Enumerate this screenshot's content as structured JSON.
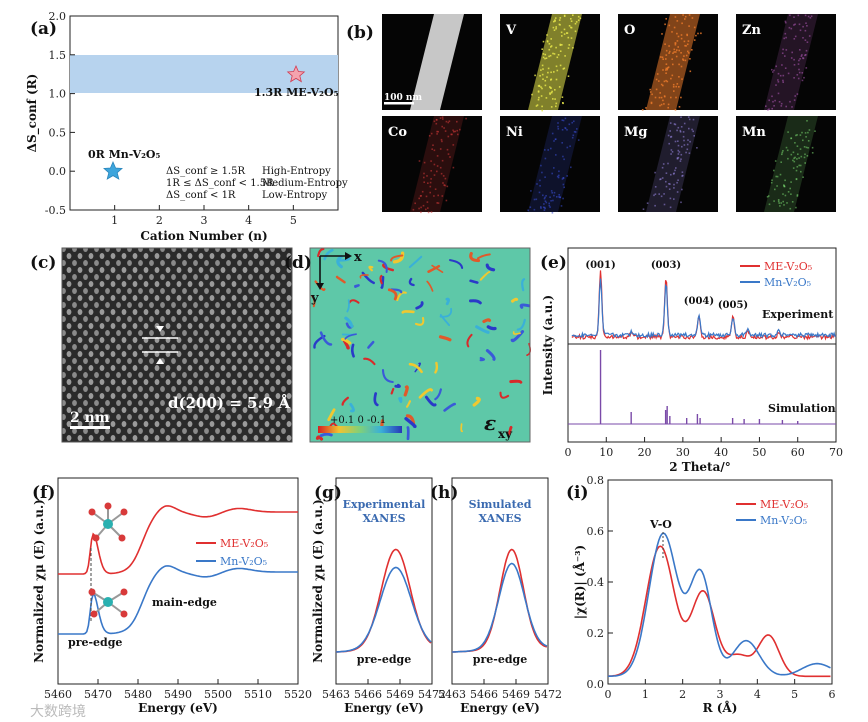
{
  "panels": {
    "a": {
      "label": "(a)",
      "chart_data": {
        "type": "scatter",
        "xlabel": "Cation Number (n)",
        "ylabel": "ΔS_conf (R)",
        "xlim": [
          0,
          6
        ],
        "ylim": [
          -0.5,
          2.0
        ],
        "xticks": [
          "1",
          "2",
          "3",
          "4",
          "5"
        ],
        "yticks": [
          "-0.5",
          "0.0",
          "0.5",
          "1.0",
          "1.5",
          "2.0"
        ],
        "band": [
          1.0,
          1.5
        ],
        "points": [
          {
            "name": "0R Mn-V₂O₅",
            "x": 1,
            "y": 0.0,
            "color": "#3da5dc"
          },
          {
            "name": "1.3R ME-V₂O₅",
            "x": 5,
            "y": 1.25,
            "color": "#f4a3ae"
          }
        ],
        "criteria": [
          {
            "cond": "ΔS_conf ≥ 1.5R",
            "cls": "High-Entropy"
          },
          {
            "cond": "1R ≤ ΔS_conf < 1.5R",
            "cls": "Medium-Entropy"
          },
          {
            "cond": "ΔS_conf < 1R",
            "cls": "Low-Entropy"
          }
        ]
      }
    },
    "b": {
      "label": "(b)",
      "scale_bar": "100 nm",
      "tiles": [
        {
          "el": "",
          "color": "#dcdcdc"
        },
        {
          "el": "V",
          "color": "#e6e64a"
        },
        {
          "el": "O",
          "color": "#e8782a"
        },
        {
          "el": "Zn",
          "color": "#b05ab8"
        },
        {
          "el": "Co",
          "color": "#d83a3a"
        },
        {
          "el": "Ni",
          "color": "#3a4ed8"
        },
        {
          "el": "Mg",
          "color": "#9a88e8"
        },
        {
          "el": "Mn",
          "color": "#7ad870"
        }
      ]
    },
    "c": {
      "label": "(c)",
      "scale_bar": "2 nm",
      "spacing": "d(200) = 5.9 Å"
    },
    "d": {
      "label": "(d)",
      "axis_x": "x",
      "axis_y": "y",
      "colorbar": "+0.1  0  -0.1",
      "strain": "ε",
      "strain_sub": "xy"
    },
    "e": {
      "label": "(e)",
      "chart_data": {
        "type": "line",
        "xlabel": "2 Theta/°",
        "ylabel": "Intensity (a.u.)",
        "xlim": [
          0,
          70
        ],
        "xticks": [
          "0",
          "10",
          "20",
          "30",
          "40",
          "50",
          "60",
          "70"
        ],
        "peaks": [
          {
            "label": "(001)",
            "x": 8.5
          },
          {
            "label": "(003)",
            "x": 25.6
          },
          {
            "label": "(004)",
            "x": 34.2
          },
          {
            "label": "(005)",
            "x": 43.1
          }
        ],
        "series": [
          {
            "name": "ME-V₂O₅",
            "color": "#e03030"
          },
          {
            "name": "Mn-V₂O₅",
            "color": "#3a78c8"
          }
        ],
        "top_label": "Experiment",
        "bottom_label": "Simulation"
      }
    },
    "f": {
      "label": "(f)",
      "chart_data": {
        "type": "line",
        "xlabel": "Energy (eV)",
        "ylabel": "Normalized χμ (E) (a.u.)",
        "xlim": [
          5460,
          5520
        ],
        "xticks": [
          "5460",
          "5470",
          "5480",
          "5490",
          "5500",
          "5510",
          "5520"
        ],
        "series": [
          {
            "name": "ME-V₂O₅",
            "color": "#e03030"
          },
          {
            "name": "Mn-V₂O₅",
            "color": "#3a78c8"
          }
        ],
        "annotations": [
          "pre-edge",
          "main-edge"
        ]
      }
    },
    "g": {
      "label": "(g)",
      "title1": "Experimental",
      "title2": "XANES",
      "chart_data": {
        "type": "line",
        "xlabel": "Energy (eV)",
        "ylabel": "Normalized χμ (E) (a.u.)",
        "xticks": [
          "5463",
          "5466",
          "5469",
          "5472"
        ],
        "annotation": "pre-edge"
      }
    },
    "h": {
      "label": "(h)",
      "title1": "Simulated",
      "title2": "XANES",
      "chart_data": {
        "type": "line",
        "xlabel": "Energy (eV)",
        "xticks": [
          "5463",
          "5466",
          "5469",
          "5472"
        ],
        "annotation": "pre-edge"
      }
    },
    "i": {
      "label": "(i)",
      "chart_data": {
        "type": "line",
        "xlabel": "R (Å)",
        "ylabel": "|χ(R)| (Å⁻³)",
        "xlim": [
          0,
          6
        ],
        "ylim": [
          0,
          0.8
        ],
        "xticks": [
          "0",
          "1",
          "2",
          "3",
          "4",
          "5",
          "6"
        ],
        "yticks": [
          "0.0",
          "0.2",
          "0.4",
          "0.6",
          "0.8"
        ],
        "annotation": "V-O",
        "series": [
          {
            "name": "ME-V₂O₅",
            "color": "#e03030"
          },
          {
            "name": "Mn-V₂O₅",
            "color": "#3a78c8"
          }
        ]
      }
    }
  },
  "watermark": "大数跨境"
}
